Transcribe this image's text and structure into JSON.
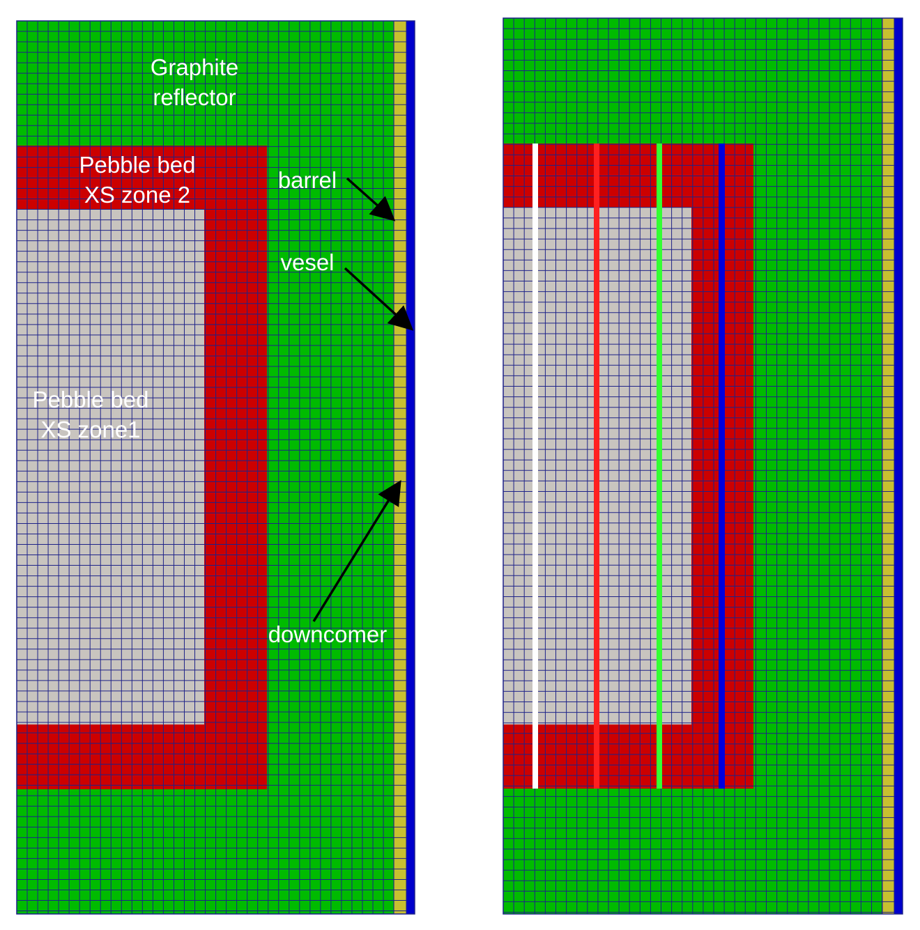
{
  "colors": {
    "reflector": "#00bb00",
    "zone1": "#c8c4bf",
    "zone2": "#cc0000",
    "barrel_strip": "#c8c030",
    "vessel": "#0000cc",
    "grid": "#1e2288",
    "label_text": "#ffffff",
    "arrow": "#000000",
    "line_white": "#ffffff",
    "line_red": "#ff2020",
    "line_green": "#33ff33",
    "line_blue": "#0000dd"
  },
  "labels": {
    "graphite_reflector": [
      "Graphite",
      "reflector"
    ],
    "pebble_bed_zone2": [
      "Pebble bed",
      "XS zone 2"
    ],
    "pebble_bed_zone1": [
      "Pebble bed",
      "XS zone1"
    ],
    "barrel": "barrel",
    "vessel": "vesel",
    "downcomer": "downcomer"
  },
  "panels": [
    {
      "id": "left",
      "lines": []
    },
    {
      "id": "right",
      "lines": [
        "line_white",
        "line_red",
        "line_green",
        "line_blue"
      ]
    }
  ]
}
